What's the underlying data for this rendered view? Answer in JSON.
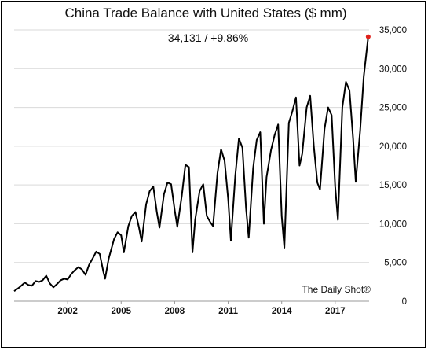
{
  "chart_data": {
    "type": "line",
    "title": "China Trade Balance with United States ($ mm)",
    "subtitle": "34,131  /  +9.86%",
    "source": "The Daily Shot®",
    "ylim": [
      0,
      35000
    ],
    "yticks": [
      0,
      5000,
      10000,
      15000,
      20000,
      25000,
      30000,
      35000
    ],
    "ytick_labels": [
      "0",
      "5,000",
      "10,000",
      "15,000",
      "20,000",
      "25,000",
      "30,000",
      "35,000"
    ],
    "xlim": [
      1999.0,
      2018.9
    ],
    "xticks": [
      2002,
      2005,
      2008,
      2011,
      2014,
      2017
    ],
    "xtick_labels": [
      "2002",
      "2005",
      "2008",
      "2011",
      "2014",
      "2017"
    ],
    "grid": true,
    "line_color": "#000000",
    "end_marker_color": "#e0211b",
    "series": [
      {
        "x": [
          1999.0,
          1999.3,
          1999.6,
          1999.8,
          2000.0,
          2000.2,
          2000.4,
          2000.6,
          2000.8,
          2001.0,
          2001.2,
          2001.4,
          2001.6,
          2001.8,
          2002.0,
          2002.2,
          2002.4,
          2002.6,
          2002.8,
          2003.0,
          2003.2,
          2003.4,
          2003.6,
          2003.8,
          2004.0,
          2004.1,
          2004.3,
          2004.6,
          2004.8,
          2005.0,
          2005.15,
          2005.4,
          2005.6,
          2005.8,
          2006.0,
          2006.15,
          2006.4,
          2006.6,
          2006.8,
          2007.0,
          2007.15,
          2007.4,
          2007.6,
          2007.8,
          2008.0,
          2008.15,
          2008.4,
          2008.6,
          2008.8,
          2009.0,
          2009.15,
          2009.4,
          2009.6,
          2009.8,
          2010.0,
          2010.15,
          2010.4,
          2010.6,
          2010.8,
          2011.0,
          2011.15,
          2011.4,
          2011.6,
          2011.8,
          2012.0,
          2012.15,
          2012.4,
          2012.6,
          2012.8,
          2013.0,
          2013.15,
          2013.4,
          2013.6,
          2013.8,
          2014.0,
          2014.15,
          2014.4,
          2014.6,
          2014.8,
          2015.0,
          2015.15,
          2015.4,
          2015.6,
          2015.8,
          2016.0,
          2016.15,
          2016.4,
          2016.6,
          2016.8,
          2017.0,
          2017.15,
          2017.4,
          2017.6,
          2017.8,
          2018.0,
          2018.15,
          2018.4,
          2018.6,
          2018.85
        ],
        "y": [
          1300,
          1800,
          2400,
          2100,
          2000,
          2600,
          2500,
          2700,
          3300,
          2300,
          1800,
          2200,
          2700,
          2900,
          2800,
          3500,
          4000,
          4400,
          4100,
          3400,
          4700,
          5500,
          6400,
          6100,
          3800,
          2900,
          5500,
          8000,
          8900,
          8500,
          6300,
          9700,
          11000,
          11500,
          9500,
          7700,
          12500,
          14200,
          14800,
          11500,
          9500,
          13800,
          15300,
          15100,
          11800,
          9600,
          13600,
          17600,
          17300,
          6300,
          10500,
          14200,
          15100,
          11000,
          10200,
          9700,
          16500,
          19600,
          18100,
          13100,
          7800,
          16200,
          21000,
          19800,
          12000,
          8200,
          17200,
          20800,
          21800,
          10000,
          16000,
          19500,
          21400,
          22800,
          11000,
          6900,
          23000,
          24500,
          26300,
          17500,
          19000,
          25000,
          26500,
          20000,
          15300,
          14400,
          22200,
          25000,
          24000,
          14800,
          10500,
          25000,
          28300,
          27200,
          21000,
          15400,
          22000,
          29000,
          34131
        ]
      }
    ]
  }
}
